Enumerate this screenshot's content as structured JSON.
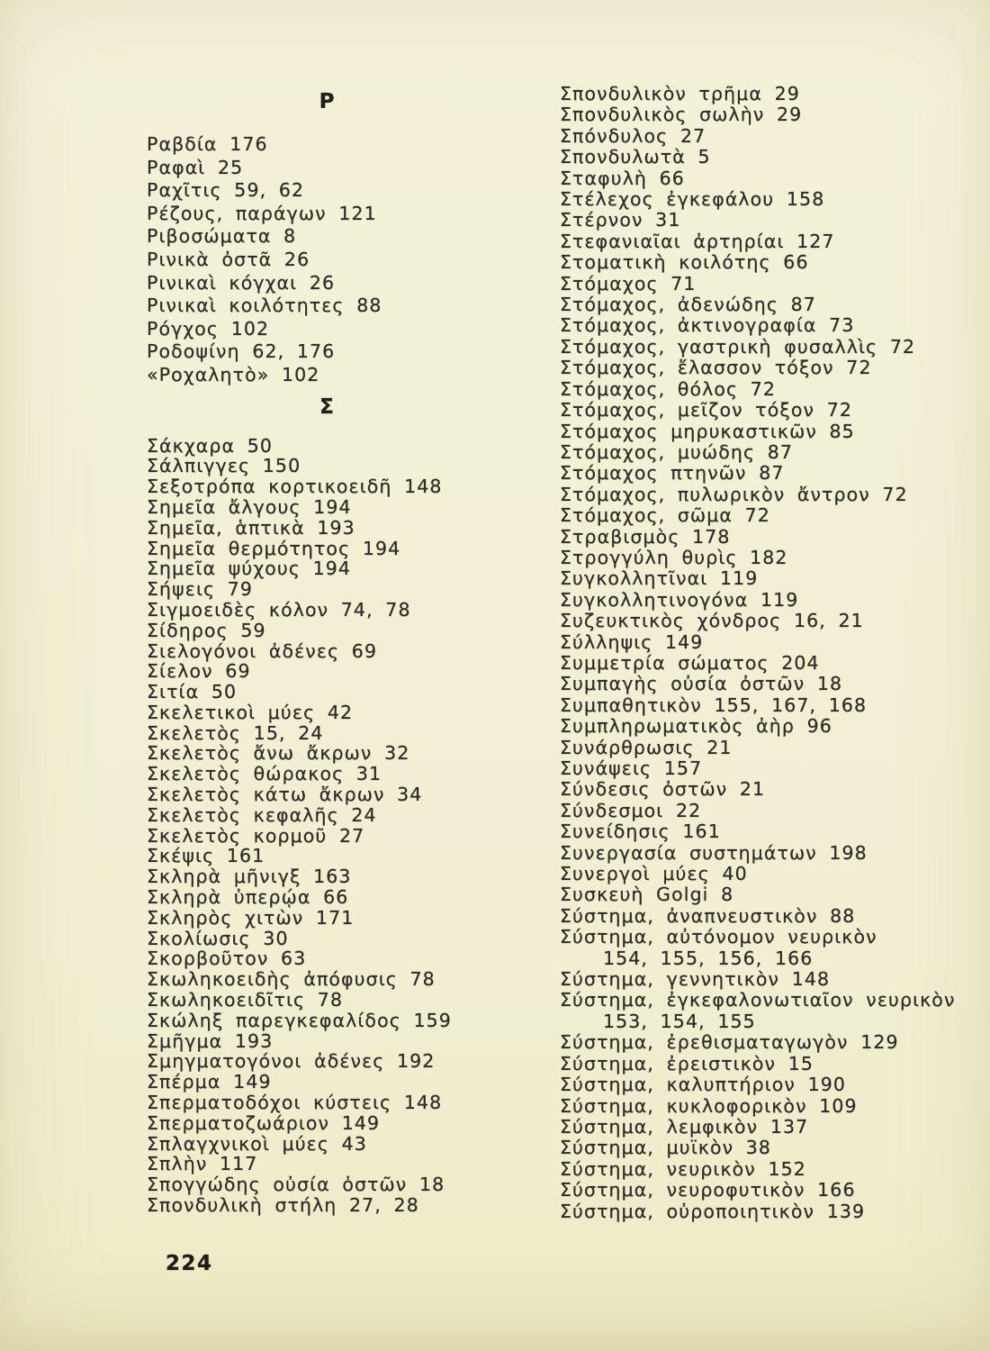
{
  "page": {
    "number": "224",
    "paper_color": "#f1eed2",
    "ink_color": "#2e2c26"
  },
  "index": {
    "columns": [
      {
        "side": "left",
        "sections": [
          {
            "letter": "Ρ",
            "entries": [
              {
                "term": "Ραβδία",
                "pages": "176"
              },
              {
                "term": "Ραφαὶ",
                "pages": "25"
              },
              {
                "term": "Ραχῖτις",
                "pages": "59, 62"
              },
              {
                "term": "Ρέζους, παράγων",
                "pages": "121"
              },
              {
                "term": "Ριβοσώματα",
                "pages": "8"
              },
              {
                "term": "Ρινικὰ ὀστᾶ",
                "pages": "26"
              },
              {
                "term": "Ρινικαὶ κόγχαι",
                "pages": "26"
              },
              {
                "term": "Ρινικαὶ κοιλότητες",
                "pages": "88"
              },
              {
                "term": "Ρόγχος",
                "pages": "102"
              },
              {
                "term": "Ροδοψίνη",
                "pages": "62, 176"
              },
              {
                "term": "«Ροχαλητὸ»",
                "pages": "102"
              }
            ]
          },
          {
            "letter": "Σ",
            "entries": [
              {
                "term": "Σάκχαρα",
                "pages": "50"
              },
              {
                "term": "Σάλπιγγες",
                "pages": "150"
              },
              {
                "term": "Σεξοτρόπα κορτικοειδῆ",
                "pages": "148"
              },
              {
                "term": "Σημεῖα ἄλγους",
                "pages": "194"
              },
              {
                "term": "Σημεῖα, ἁπτικὰ",
                "pages": "193"
              },
              {
                "term": "Σημεῖα θερμότητος",
                "pages": "194"
              },
              {
                "term": "Σημεῖα ψύχους",
                "pages": "194"
              },
              {
                "term": "Σήψεις",
                "pages": "79"
              },
              {
                "term": "Σιγμοειδὲς κόλον",
                "pages": "74, 78"
              },
              {
                "term": "Σίδηρος",
                "pages": "59"
              },
              {
                "term": "Σιελογόνοι ἀδένες",
                "pages": "69"
              },
              {
                "term": "Σίελον",
                "pages": "69"
              },
              {
                "term": "Σιτία",
                "pages": "50"
              },
              {
                "term": "Σκελετικοὶ μύες",
                "pages": "42"
              },
              {
                "term": "Σκελετὸς",
                "pages": "15, 24"
              },
              {
                "term": "Σκελετὸς ἄνω ἄκρων",
                "pages": "32"
              },
              {
                "term": "Σκελετὸς θώρακος",
                "pages": "31"
              },
              {
                "term": "Σκελετὸς κάτω ἄκρων",
                "pages": "34"
              },
              {
                "term": "Σκελετὸς κεφαλῆς",
                "pages": "24"
              },
              {
                "term": "Σκελετὸς κορμοῦ",
                "pages": "27"
              },
              {
                "term": "Σκέψις",
                "pages": "161"
              },
              {
                "term": "Σκληρὰ μῆνιγξ",
                "pages": "163"
              },
              {
                "term": "Σκληρὰ ὑπερῴα",
                "pages": "66"
              },
              {
                "term": "Σκληρὸς χιτὼν",
                "pages": "171"
              },
              {
                "term": "Σκολίωσις",
                "pages": "30"
              },
              {
                "term": "Σκορβοῦτον",
                "pages": "63"
              },
              {
                "term": "Σκωληκοειδὴς ἀπόφυσις",
                "pages": "78"
              },
              {
                "term": "Σκωληκοειδῖτις",
                "pages": "78"
              },
              {
                "term": "Σκώληξ παρεγκεφαλίδος",
                "pages": "159"
              },
              {
                "term": "Σμῆγμα",
                "pages": "193"
              },
              {
                "term": "Σμηγματογόνοι ἀδένες",
                "pages": "192"
              },
              {
                "term": "Σπέρμα",
                "pages": "149"
              },
              {
                "term": "Σπερματοδόχοι κύστεις",
                "pages": "148"
              },
              {
                "term": "Σπερματοζωάριον",
                "pages": "149"
              },
              {
                "term": "Σπλαγχνικοὶ μύες",
                "pages": "43"
              },
              {
                "term": "Σπλὴν",
                "pages": "117"
              },
              {
                "term": "Σπογγώδης οὐσία ὀστῶν",
                "pages": "18"
              },
              {
                "term": "Σπονδυλικὴ στήλη",
                "pages": "27, 28"
              }
            ]
          }
        ]
      },
      {
        "side": "right",
        "sections": [
          {
            "letter": null,
            "entries": [
              {
                "term": "Σπονδυλικὸν τρῆμα",
                "pages": "29"
              },
              {
                "term": "Σπονδυλικὸς σωλὴν",
                "pages": "29"
              },
              {
                "term": "Σπόνδυλος",
                "pages": "27"
              },
              {
                "term": "Σπονδυλωτὰ",
                "pages": "5"
              },
              {
                "term": "Σταφυλὴ",
                "pages": "66"
              },
              {
                "term": "Στέλεχος ἐγκεφάλου",
                "pages": "158"
              },
              {
                "term": "Στέρνον",
                "pages": "31"
              },
              {
                "term": "Στεφανιαῖαι ἀρτηρίαι",
                "pages": "127"
              },
              {
                "term": "Στοματικὴ κοιλότης",
                "pages": "66"
              },
              {
                "term": "Στόμαχος",
                "pages": "71"
              },
              {
                "term": "Στόμαχος, ἀδενώδης",
                "pages": "87"
              },
              {
                "term": "Στόμαχος, ἀκτινογραφία",
                "pages": "73"
              },
              {
                "term": "Στόμαχος, γαστρικὴ φυσαλλὶς",
                "pages": "72"
              },
              {
                "term": "Στόμαχος, ἔλασσον τόξον",
                "pages": "72"
              },
              {
                "term": "Στόμαχος, θόλος",
                "pages": "72"
              },
              {
                "term": "Στόμαχος, μεῖζον τόξον",
                "pages": "72"
              },
              {
                "term": "Στόμαχος μηρυκαστικῶν",
                "pages": "85"
              },
              {
                "term": "Στόμαχος, μυώδης",
                "pages": "87"
              },
              {
                "term": "Στόμαχος πτηνῶν",
                "pages": "87"
              },
              {
                "term": "Στόμαχος, πυλωρικὸν ἄντρον",
                "pages": "72"
              },
              {
                "term": "Στόμαχος, σῶμα",
                "pages": "72"
              },
              {
                "term": "Στραβισμὸς",
                "pages": "178"
              },
              {
                "term": "Στρογγύλη θυρὶς",
                "pages": "182"
              },
              {
                "term": "Συγκολλητῖναι",
                "pages": "119"
              },
              {
                "term": "Συγκολλητινογόνα",
                "pages": "119"
              },
              {
                "term": "Συζευκτικὸς χόνδρος",
                "pages": "16, 21"
              },
              {
                "term": "Σύλληψις",
                "pages": "149"
              },
              {
                "term": "Συμμετρία σώματος",
                "pages": "204"
              },
              {
                "term": "Συμπαγὴς οὐσία ὀστῶν",
                "pages": "18"
              },
              {
                "term": "Συμπαθητικὸν",
                "pages": "155, 167, 168"
              },
              {
                "term": "Συμπληρωματικὸς ἀὴρ",
                "pages": "96"
              },
              {
                "term": "Συνάρθρωσις",
                "pages": "21"
              },
              {
                "term": "Συνάψεις",
                "pages": "157"
              },
              {
                "term": "Σύνδεσις ὀστῶν",
                "pages": "21"
              },
              {
                "term": "Σύνδεσμοι",
                "pages": "22"
              },
              {
                "term": "Συνείδησις",
                "pages": "161"
              },
              {
                "term": "Συνεργασία συστημάτων",
                "pages": "198"
              },
              {
                "term": "Συνεργοὶ μύες",
                "pages": "40"
              },
              {
                "term": "Συσκευὴ Golgi",
                "pages": "8"
              },
              {
                "term": "Σύστημα, ἀναπνευστικὸν",
                "pages": "88"
              },
              {
                "term": "Σύστημα, αὐτόνομον νευρικὸν",
                "pages": "154, 155, 156, 166"
              },
              {
                "term": "Σύστημα, γεννητικὸν",
                "pages": "148"
              },
              {
                "term": "Σύστημα, ἐγκεφαλονωτιαῖον νευρικὸν",
                "pages": "153, 154, 155"
              },
              {
                "term": "Σύστημα, ἐρεθισματαγωγὸν",
                "pages": "129"
              },
              {
                "term": "Σύστημα, ἐρειστικὸν",
                "pages": "15"
              },
              {
                "term": "Σύστημα, καλυπτήριον",
                "pages": "190"
              },
              {
                "term": "Σύστημα, κυκλοφορικὸν",
                "pages": "109"
              },
              {
                "term": "Σύστημα, λεμφικὸν",
                "pages": "137"
              },
              {
                "term": "Σύστημα, μυϊκὸν",
                "pages": "38"
              },
              {
                "term": "Σύστημα, νευρικὸν",
                "pages": "152"
              },
              {
                "term": "Σύστημα, νευροφυτικὸν",
                "pages": "166"
              },
              {
                "term": "Σύστημα, οὐροποιητικὸν",
                "pages": "139"
              }
            ]
          }
        ]
      }
    ]
  }
}
